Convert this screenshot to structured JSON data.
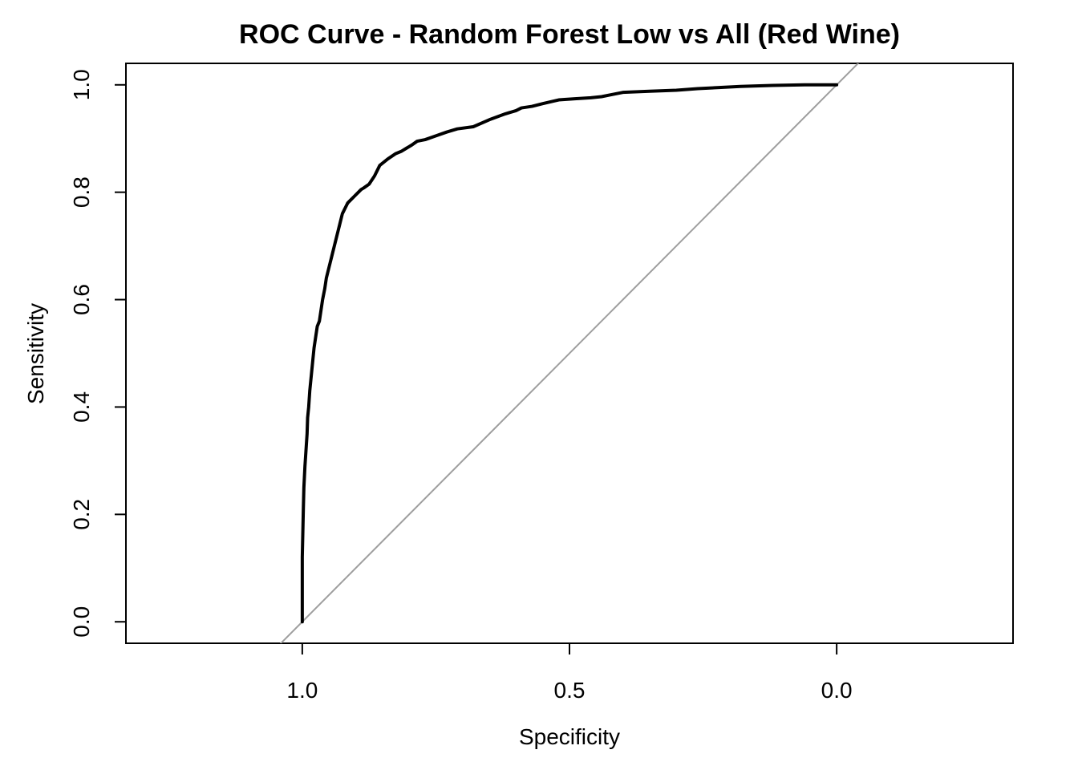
{
  "chart_data": {
    "type": "line",
    "title": "ROC Curve - Random Forest  Low vs All (Red Wine)",
    "xlabel": "Specificity",
    "ylabel": "Sensitivity",
    "x_reversed": true,
    "xlim": [
      1.33,
      -0.33
    ],
    "ylim": [
      -0.04,
      1.04
    ],
    "x_ticks": [
      1.0,
      0.5,
      0.0
    ],
    "x_tick_labels": [
      "1.0",
      "0.5",
      "0.0"
    ],
    "y_ticks": [
      0.0,
      0.2,
      0.4,
      0.6,
      0.8,
      1.0
    ],
    "y_tick_labels": [
      "0.0",
      "0.2",
      "0.4",
      "0.6",
      "0.8",
      "1.0"
    ],
    "grid": false,
    "colors": {
      "roc": "#000000",
      "diagonal": "#9e9e9e"
    },
    "series": [
      {
        "specificity": [
          1.0,
          1.0,
          0.998,
          0.997,
          0.995,
          0.993,
          0.991,
          0.99,
          0.988,
          0.986,
          0.983,
          0.98,
          0.978,
          0.975,
          0.972,
          0.968,
          0.965,
          0.962,
          0.958,
          0.955,
          0.95,
          0.945,
          0.94,
          0.935,
          0.93,
          0.925,
          0.92,
          0.915,
          0.91,
          0.905,
          0.9,
          0.895,
          0.89,
          0.885,
          0.875,
          0.865,
          0.855,
          0.84,
          0.825,
          0.815,
          0.805,
          0.795,
          0.785,
          0.77,
          0.75,
          0.73,
          0.71,
          0.68,
          0.65,
          0.62,
          0.6,
          0.59,
          0.57,
          0.55,
          0.52,
          0.49,
          0.46,
          0.44,
          0.42,
          0.4,
          0.35,
          0.3,
          0.26,
          0.22,
          0.18,
          0.12,
          0.06,
          0.0
        ],
        "sensitivity": [
          0.0,
          0.12,
          0.21,
          0.25,
          0.29,
          0.32,
          0.35,
          0.38,
          0.4,
          0.43,
          0.46,
          0.49,
          0.51,
          0.53,
          0.55,
          0.56,
          0.58,
          0.6,
          0.62,
          0.64,
          0.66,
          0.68,
          0.7,
          0.72,
          0.74,
          0.76,
          0.77,
          0.78,
          0.785,
          0.79,
          0.795,
          0.8,
          0.805,
          0.808,
          0.815,
          0.83,
          0.85,
          0.862,
          0.872,
          0.876,
          0.882,
          0.888,
          0.895,
          0.898,
          0.905,
          0.912,
          0.918,
          0.922,
          0.935,
          0.946,
          0.952,
          0.957,
          0.96,
          0.965,
          0.972,
          0.974,
          0.976,
          0.978,
          0.982,
          0.986,
          0.988,
          0.99,
          0.993,
          0.995,
          0.997,
          0.999,
          1.0,
          1.0
        ]
      }
    ],
    "reference_line": {
      "from": [
        1.0,
        0.0
      ],
      "to": [
        0.0,
        1.0
      ]
    }
  }
}
